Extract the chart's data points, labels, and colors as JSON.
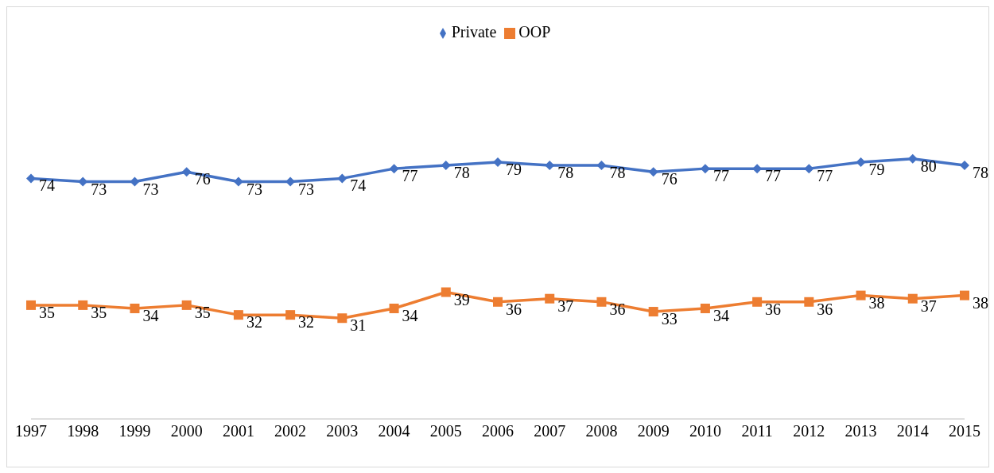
{
  "chart_data": {
    "type": "line",
    "categories": [
      "1997",
      "1998",
      "1999",
      "2000",
      "2001",
      "2002",
      "2003",
      "2004",
      "2005",
      "2006",
      "2007",
      "2008",
      "2009",
      "2010",
      "2011",
      "2012",
      "2013",
      "2014",
      "2015"
    ],
    "series": [
      {
        "name": "Private",
        "color": "#4472c4",
        "marker": "diamond",
        "values": [
          74,
          73,
          73,
          76,
          73,
          73,
          74,
          77,
          78,
          79,
          78,
          78,
          76,
          77,
          77,
          77,
          79,
          80,
          78
        ]
      },
      {
        "name": "OOP",
        "color": "#ed7d31",
        "marker": "square",
        "values": [
          35,
          35,
          34,
          35,
          32,
          32,
          31,
          34,
          39,
          36,
          37,
          36,
          33,
          34,
          36,
          36,
          38,
          37,
          38
        ]
      }
    ],
    "data_labels": true,
    "legend": "top",
    "grid": false,
    "tick_labels": "x",
    "line_style": "solid"
  }
}
